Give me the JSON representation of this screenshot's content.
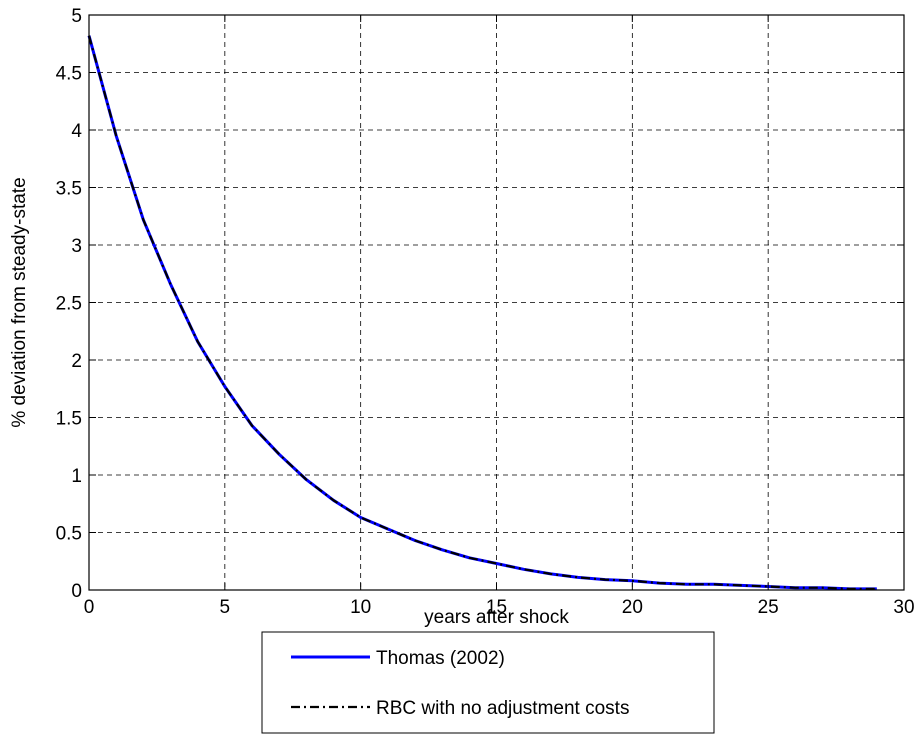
{
  "chart_data": {
    "type": "line",
    "title": "",
    "xlabel": "years after shock",
    "ylabel": "% deviation from steady-state",
    "xlim": [
      0,
      30
    ],
    "ylim": [
      0,
      5
    ],
    "x_ticks": [
      "0",
      "5",
      "10",
      "15",
      "20",
      "25",
      "30"
    ],
    "y_ticks": [
      "0",
      "0.5",
      "1",
      "1.5",
      "2",
      "2.5",
      "3",
      "3.5",
      "4",
      "4.5",
      "5"
    ],
    "grid": true,
    "legend_placement": "below plot",
    "x": [
      0,
      1,
      2,
      3,
      4,
      5,
      6,
      7,
      8,
      9,
      10,
      11,
      12,
      13,
      14,
      15,
      16,
      17,
      18,
      19,
      20,
      21,
      22,
      23,
      24,
      25,
      26,
      27,
      28,
      29
    ],
    "series": [
      {
        "name": "Thomas (2002)",
        "color": "#0000ff",
        "style": "solid",
        "values": [
          4.82,
          3.95,
          3.22,
          2.66,
          2.16,
          1.77,
          1.43,
          1.18,
          0.96,
          0.78,
          0.63,
          0.53,
          0.43,
          0.35,
          0.28,
          0.23,
          0.18,
          0.14,
          0.11,
          0.09,
          0.08,
          0.06,
          0.05,
          0.05,
          0.04,
          0.03,
          0.02,
          0.02,
          0.01,
          0.01
        ]
      },
      {
        "name": "RBC with no adjustment costs",
        "color": "#000000",
        "style": "dash-dot",
        "values": [
          4.82,
          3.95,
          3.22,
          2.66,
          2.16,
          1.77,
          1.43,
          1.18,
          0.96,
          0.78,
          0.63,
          0.53,
          0.43,
          0.35,
          0.28,
          0.23,
          0.18,
          0.14,
          0.11,
          0.09,
          0.08,
          0.06,
          0.05,
          0.05,
          0.04,
          0.03,
          0.02,
          0.02,
          0.01,
          0.01
        ]
      }
    ]
  }
}
